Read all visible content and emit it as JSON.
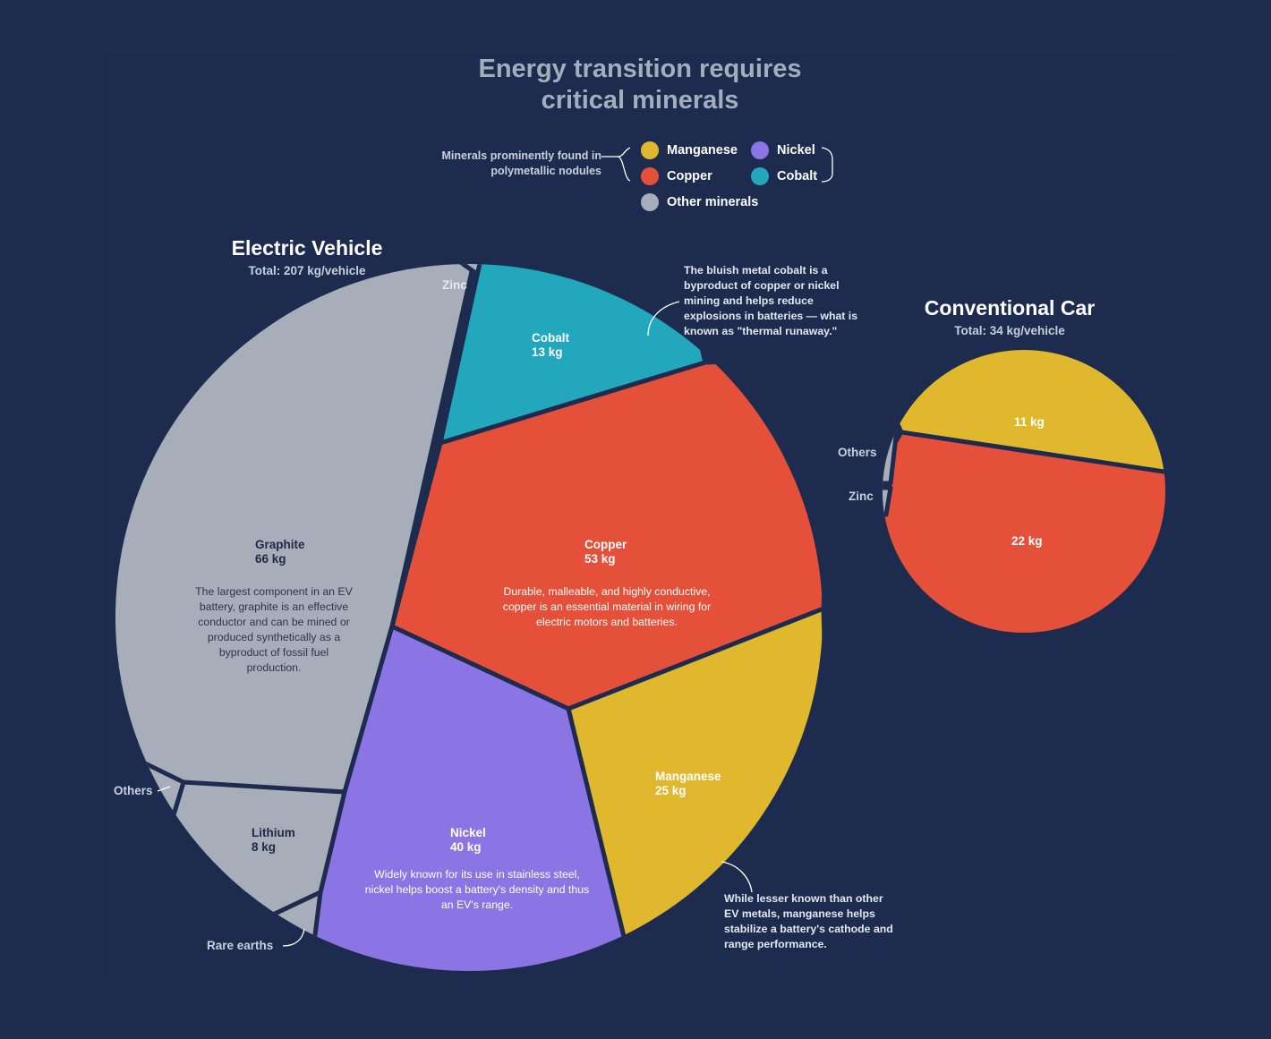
{
  "title": {
    "line1": "Energy transition requires",
    "line2": "critical minerals"
  },
  "legend": {
    "note": "Minerals prominently found in polymetallic nodules",
    "items": [
      {
        "label": "Manganese",
        "color": "#e0b82e"
      },
      {
        "label": "Nickel",
        "color": "#8b74e3"
      },
      {
        "label": "Copper",
        "color": "#e4503a"
      },
      {
        "label": "Cobalt",
        "color": "#23a7bd"
      },
      {
        "label": "Other minerals",
        "color": "#a7adb9"
      }
    ]
  },
  "ev": {
    "heading": "Electric Vehicle",
    "total": "Total: 207 kg/vehicle",
    "labels": {
      "zinc": "Zinc",
      "cobalt_name": "Cobalt",
      "cobalt_value": "13 kg",
      "graphite_name": "Graphite",
      "graphite_value": "66 kg",
      "graphite_desc": "The largest component in an EV battery, graphite is an effective conductor and can be mined or produced synthetically as a byproduct of fossil fuel production.",
      "copper_name": "Copper",
      "copper_value": "53 kg",
      "copper_desc": "Durable, malleable, and highly conductive, copper is an essential material in wiring for electric motors and batteries.",
      "manganese_name": "Manganese",
      "manganese_value": "25 kg",
      "nickel_name": "Nickel",
      "nickel_value": "40 kg",
      "nickel_desc": "Widely known for its use in stainless steel, nickel helps boost a battery's density and thus an EV's range.",
      "lithium_name": "Lithium",
      "lithium_value": "8 kg",
      "others": "Others",
      "rare_earths": "Rare earths"
    },
    "annotations": {
      "cobalt": "The bluish metal cobalt is a byproduct of copper or nickel mining and helps reduce explosions in batteries — what is known as \"thermal runaway.\"",
      "manganese": "While lesser known than other EV metals, manganese helps stabilize a battery's cathode and range performance."
    }
  },
  "cc": {
    "heading": "Conventional Car",
    "total": "Total: 34 kg/vehicle",
    "labels": {
      "manganese_value": "11 kg",
      "copper_value": "22 kg",
      "others": "Others",
      "zinc": "Zinc"
    }
  },
  "chart_data": [
    {
      "type": "pie",
      "title": "Electric Vehicle",
      "subtitle": "Total: 207 kg/vehicle",
      "unit": "kg/vehicle",
      "total": 207,
      "slices": [
        {
          "label": "Zinc",
          "value": 1,
          "group": "Other minerals",
          "color": "#a7adb9"
        },
        {
          "label": "Cobalt",
          "value": 13,
          "group": "Cobalt",
          "color": "#23a7bd"
        },
        {
          "label": "Copper",
          "value": 53,
          "group": "Copper",
          "color": "#e4503a"
        },
        {
          "label": "Manganese",
          "value": 25,
          "group": "Manganese",
          "color": "#e0b82e"
        },
        {
          "label": "Nickel",
          "value": 40,
          "group": "Nickel",
          "color": "#8b74e3"
        },
        {
          "label": "Rare earths",
          "value": 0.5,
          "group": "Other minerals",
          "color": "#a7adb9"
        },
        {
          "label": "Lithium",
          "value": 8,
          "group": "Other minerals",
          "color": "#a7adb9"
        },
        {
          "label": "Others",
          "value": 1,
          "group": "Other minerals",
          "color": "#a7adb9"
        },
        {
          "label": "Graphite",
          "value": 66,
          "group": "Other minerals",
          "color": "#a7adb9"
        }
      ]
    },
    {
      "type": "pie",
      "title": "Conventional Car",
      "subtitle": "Total: 34 kg/vehicle",
      "unit": "kg/vehicle",
      "total": 34,
      "slices": [
        {
          "label": "Manganese",
          "value": 11,
          "group": "Manganese",
          "color": "#e0b82e"
        },
        {
          "label": "Copper",
          "value": 22,
          "group": "Copper",
          "color": "#e4503a"
        },
        {
          "label": "Zinc",
          "value": 0.3,
          "group": "Other minerals",
          "color": "#a7adb9"
        },
        {
          "label": "Others",
          "value": 0.3,
          "group": "Other minerals",
          "color": "#a7adb9"
        }
      ]
    }
  ]
}
